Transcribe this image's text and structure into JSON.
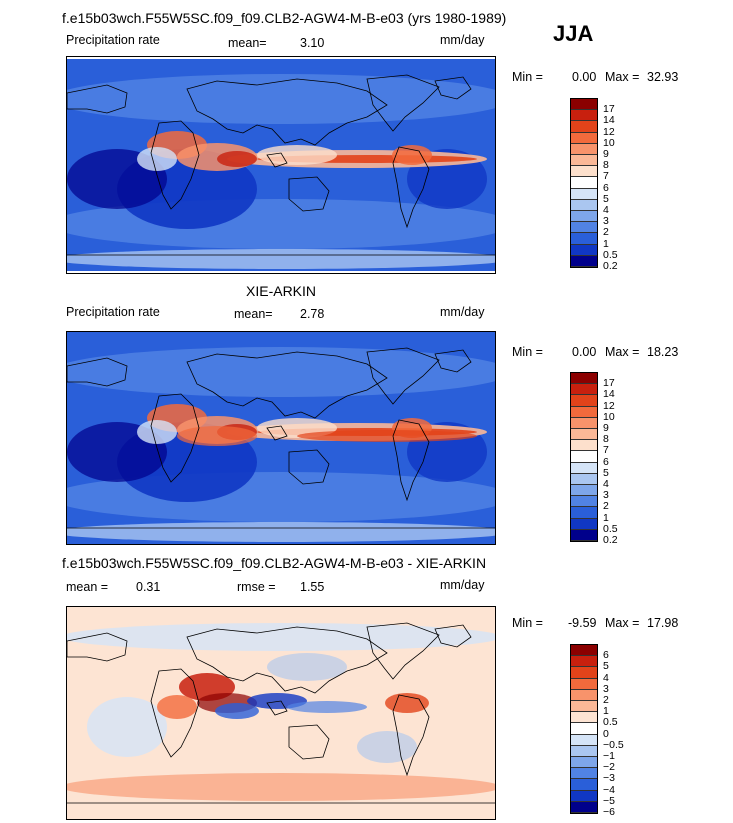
{
  "season": "JJA",
  "chart_data": [
    {
      "type": "heatmap",
      "title": "f.e15b03wch.F55W5SC.f09_f09.CLB2-AGW4-M-B-e03 (yrs 1980-1989)",
      "subtitle_left": "Precipitation rate",
      "mean_label": "mean=",
      "mean_value": "3.10",
      "units": "mm/day",
      "min_label": "Min =",
      "min_value": "0.00",
      "max_label": "Max =",
      "max_value": "32.93",
      "colorbar": [
        "17",
        "14",
        "12",
        "10",
        "9",
        "8",
        "7",
        "6",
        "5",
        "4",
        "3",
        "2",
        "1",
        "0.5",
        "0.2"
      ]
    },
    {
      "type": "heatmap",
      "title": "XIE-ARKIN",
      "subtitle_left": "Precipitation rate",
      "mean_label": "mean=",
      "mean_value": "2.78",
      "units": "mm/day",
      "min_label": "Min =",
      "min_value": "0.00",
      "max_label": "Max =",
      "max_value": "18.23",
      "colorbar": [
        "17",
        "14",
        "12",
        "10",
        "9",
        "8",
        "7",
        "6",
        "5",
        "4",
        "3",
        "2",
        "1",
        "0.5",
        "0.2"
      ]
    },
    {
      "type": "heatmap",
      "title": "f.e15b03wch.F55W5SC.f09_f09.CLB2-AGW4-M-B-e03 - XIE-ARKIN",
      "mean_label": "mean =",
      "mean_value": "0.31",
      "rmse_label": "rmse =",
      "rmse_value": "1.55",
      "units": "mm/day",
      "min_label": "Min =",
      "min_value": "-9.59",
      "max_label": "Max =",
      "max_value": "17.98",
      "colorbar": [
        "6",
        "5",
        "4",
        "3",
        "2",
        "1",
        "0.5",
        "0",
        "−0.5",
        "−1",
        "−2",
        "−3",
        "−4",
        "−5",
        "−6"
      ]
    }
  ],
  "colors": {
    "precip": [
      "#8b0000",
      "#c8200e",
      "#e2431a",
      "#f26a3c",
      "#f8936b",
      "#fbb897",
      "#fde0cc",
      "#ffffff",
      "#d5e4f7",
      "#aac6f0",
      "#7ea6ea",
      "#5183e4",
      "#2a5fd9",
      "#1037c4",
      "#00008b"
    ],
    "diff": [
      "#8b0000",
      "#c8200e",
      "#e2431a",
      "#f26a3c",
      "#f8936b",
      "#fbb897",
      "#fde4d3",
      "#ffffff",
      "#d5e4f7",
      "#aac6f0",
      "#7ea6ea",
      "#5183e4",
      "#2a5fd9",
      "#1037c4",
      "#00008b"
    ]
  }
}
